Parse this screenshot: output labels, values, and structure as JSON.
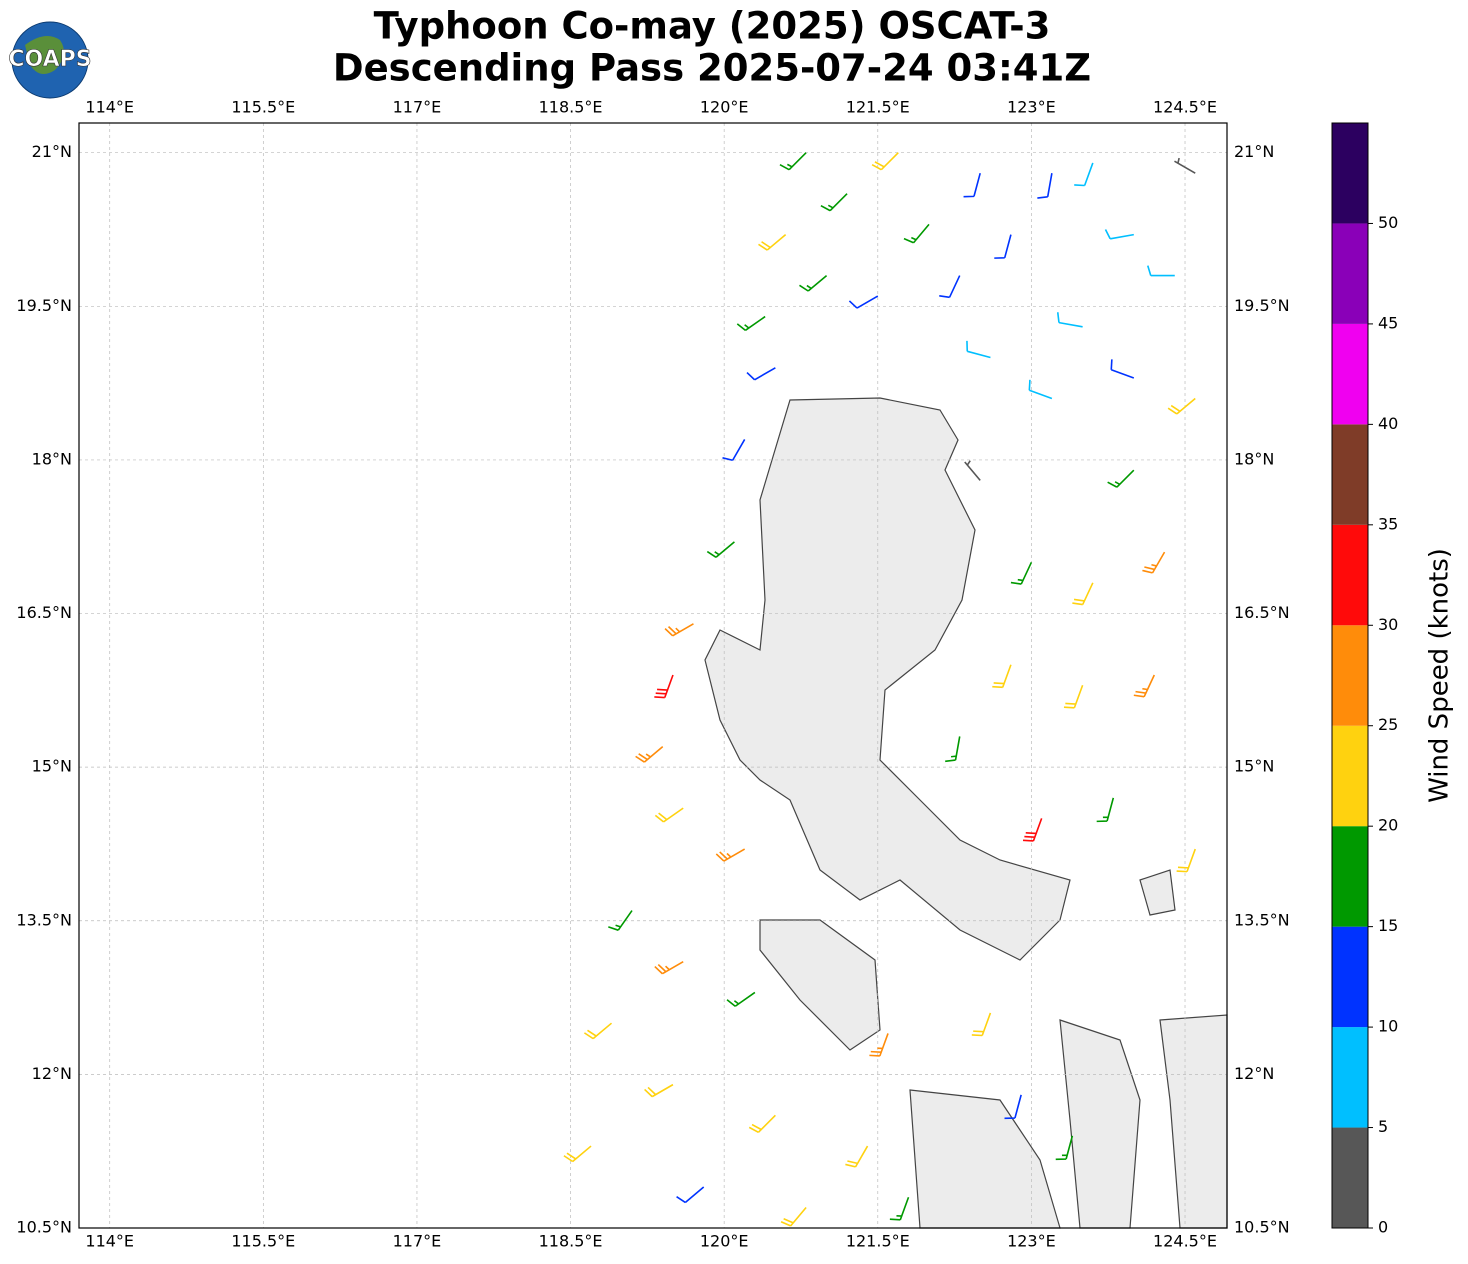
{
  "chart_data": {
    "type": "wind-barb-map",
    "title": "Typhoon Co-may (2025) OSCAT-3",
    "subtitle": "Descending Pass 2025-07-24 03:41Z",
    "logo_text": "COAPS",
    "xlim": [
      113.7,
      124.91
    ],
    "ylim": [
      10.5,
      21.29
    ],
    "xticks": [
      {
        "value": 114,
        "label": "114°E"
      },
      {
        "value": 115.5,
        "label": "115.5°E"
      },
      {
        "value": 117,
        "label": "117°E"
      },
      {
        "value": 118.5,
        "label": "118.5°E"
      },
      {
        "value": 120,
        "label": "120°E"
      },
      {
        "value": 121.5,
        "label": "121.5°E"
      },
      {
        "value": 123,
        "label": "123°E"
      },
      {
        "value": 124.5,
        "label": "124.5°E"
      }
    ],
    "yticks": [
      {
        "value": 10.5,
        "label": "10.5°N"
      },
      {
        "value": 12,
        "label": "12°N"
      },
      {
        "value": 13.5,
        "label": "13.5°N"
      },
      {
        "value": 15,
        "label": "15°N"
      },
      {
        "value": 16.5,
        "label": "16.5°N"
      },
      {
        "value": 18,
        "label": "18°N"
      },
      {
        "value": 19.5,
        "label": "19.5°N"
      },
      {
        "value": 21,
        "label": "21°N"
      }
    ],
    "grid": true,
    "colorbar": {
      "label": "Wind Speed (knots)",
      "lim": [
        0,
        55
      ],
      "bounds": [
        0,
        5,
        10,
        15,
        20,
        25,
        30,
        35,
        40,
        45,
        50,
        55
      ],
      "colors": [
        "#575757",
        "#00bfff",
        "#0033ff",
        "#009900",
        "#ffd20f",
        "#ff8c0a",
        "#ff0a0a",
        "#7f3c28",
        "#f000f0",
        "#8a00b8",
        "#2c0060"
      ],
      "ticks": [
        0,
        5,
        10,
        15,
        20,
        25,
        30,
        35,
        40,
        45,
        50
      ]
    },
    "barbs": [
      {
        "lon": 120.8,
        "lat": 21.0,
        "speed": 17,
        "dir": 225
      },
      {
        "lon": 121.2,
        "lat": 20.6,
        "speed": 17,
        "dir": 225
      },
      {
        "lon": 121.7,
        "lat": 21.0,
        "speed": 22,
        "dir": 225
      },
      {
        "lon": 122.0,
        "lat": 20.3,
        "speed": 17,
        "dir": 220
      },
      {
        "lon": 120.6,
        "lat": 20.2,
        "speed": 22,
        "dir": 230
      },
      {
        "lon": 121.0,
        "lat": 19.8,
        "speed": 17,
        "dir": 230
      },
      {
        "lon": 121.5,
        "lat": 19.6,
        "speed": 12,
        "dir": 240
      },
      {
        "lon": 120.4,
        "lat": 19.4,
        "speed": 17,
        "dir": 235
      },
      {
        "lon": 120.5,
        "lat": 18.9,
        "speed": 12,
        "dir": 240
      },
      {
        "lon": 120.2,
        "lat": 18.2,
        "speed": 12,
        "dir": 210
      },
      {
        "lon": 122.5,
        "lat": 20.8,
        "speed": 12,
        "dir": 195
      },
      {
        "lon": 122.8,
        "lat": 20.2,
        "speed": 12,
        "dir": 195
      },
      {
        "lon": 122.3,
        "lat": 19.8,
        "speed": 12,
        "dir": 205
      },
      {
        "lon": 123.2,
        "lat": 20.8,
        "speed": 12,
        "dir": 190
      },
      {
        "lon": 123.6,
        "lat": 20.9,
        "speed": 8,
        "dir": 200
      },
      {
        "lon": 124.0,
        "lat": 20.2,
        "speed": 8,
        "dir": 260
      },
      {
        "lon": 124.4,
        "lat": 19.8,
        "speed": 8,
        "dir": 270
      },
      {
        "lon": 123.5,
        "lat": 19.3,
        "speed": 8,
        "dir": 280
      },
      {
        "lon": 122.6,
        "lat": 19.0,
        "speed": 8,
        "dir": 285
      },
      {
        "lon": 123.2,
        "lat": 18.6,
        "speed": 8,
        "dir": 290
      },
      {
        "lon": 124.0,
        "lat": 18.8,
        "speed": 12,
        "dir": 290
      },
      {
        "lon": 124.6,
        "lat": 20.8,
        "speed": 3,
        "dir": 300
      },
      {
        "lon": 122.5,
        "lat": 17.8,
        "speed": 3,
        "dir": 320
      },
      {
        "lon": 124.0,
        "lat": 17.9,
        "speed": 17,
        "dir": 225
      },
      {
        "lon": 124.6,
        "lat": 18.6,
        "speed": 22,
        "dir": 230
      },
      {
        "lon": 123.0,
        "lat": 17.0,
        "speed": 17,
        "dir": 205
      },
      {
        "lon": 123.6,
        "lat": 16.8,
        "speed": 22,
        "dir": 205
      },
      {
        "lon": 124.3,
        "lat": 17.1,
        "speed": 27,
        "dir": 210
      },
      {
        "lon": 122.8,
        "lat": 16.0,
        "speed": 22,
        "dir": 200
      },
      {
        "lon": 123.5,
        "lat": 15.8,
        "speed": 22,
        "dir": 200
      },
      {
        "lon": 124.2,
        "lat": 15.9,
        "speed": 27,
        "dir": 205
      },
      {
        "lon": 122.3,
        "lat": 15.3,
        "speed": 17,
        "dir": 190
      },
      {
        "lon": 123.1,
        "lat": 14.5,
        "speed": 32,
        "dir": 200
      },
      {
        "lon": 123.8,
        "lat": 14.7,
        "speed": 17,
        "dir": 195
      },
      {
        "lon": 124.6,
        "lat": 14.2,
        "speed": 22,
        "dir": 200
      },
      {
        "lon": 120.1,
        "lat": 17.2,
        "speed": 17,
        "dir": 230
      },
      {
        "lon": 119.7,
        "lat": 16.4,
        "speed": 27,
        "dir": 240
      },
      {
        "lon": 119.5,
        "lat": 15.9,
        "speed": 32,
        "dir": 200
      },
      {
        "lon": 119.4,
        "lat": 15.2,
        "speed": 27,
        "dir": 230
      },
      {
        "lon": 119.6,
        "lat": 14.6,
        "speed": 22,
        "dir": 235
      },
      {
        "lon": 120.2,
        "lat": 14.2,
        "speed": 27,
        "dir": 240
      },
      {
        "lon": 119.1,
        "lat": 13.6,
        "speed": 17,
        "dir": 215
      },
      {
        "lon": 119.6,
        "lat": 13.1,
        "speed": 27,
        "dir": 240
      },
      {
        "lon": 120.3,
        "lat": 12.8,
        "speed": 17,
        "dir": 235
      },
      {
        "lon": 118.9,
        "lat": 12.5,
        "speed": 22,
        "dir": 230
      },
      {
        "lon": 119.5,
        "lat": 11.9,
        "speed": 22,
        "dir": 240
      },
      {
        "lon": 118.7,
        "lat": 11.3,
        "speed": 22,
        "dir": 230
      },
      {
        "lon": 120.5,
        "lat": 11.6,
        "speed": 22,
        "dir": 225
      },
      {
        "lon": 121.4,
        "lat": 11.3,
        "speed": 22,
        "dir": 210
      },
      {
        "lon": 119.8,
        "lat": 10.9,
        "speed": 12,
        "dir": 230
      },
      {
        "lon": 121.6,
        "lat": 12.4,
        "speed": 27,
        "dir": 200
      },
      {
        "lon": 122.6,
        "lat": 12.6,
        "speed": 22,
        "dir": 200
      },
      {
        "lon": 122.9,
        "lat": 11.8,
        "speed": 12,
        "dir": 195
      },
      {
        "lon": 123.4,
        "lat": 11.4,
        "speed": 17,
        "dir": 195
      },
      {
        "lon": 120.8,
        "lat": 10.7,
        "speed": 22,
        "dir": 220
      },
      {
        "lon": 121.8,
        "lat": 10.8,
        "speed": 17,
        "dir": 200
      }
    ]
  }
}
